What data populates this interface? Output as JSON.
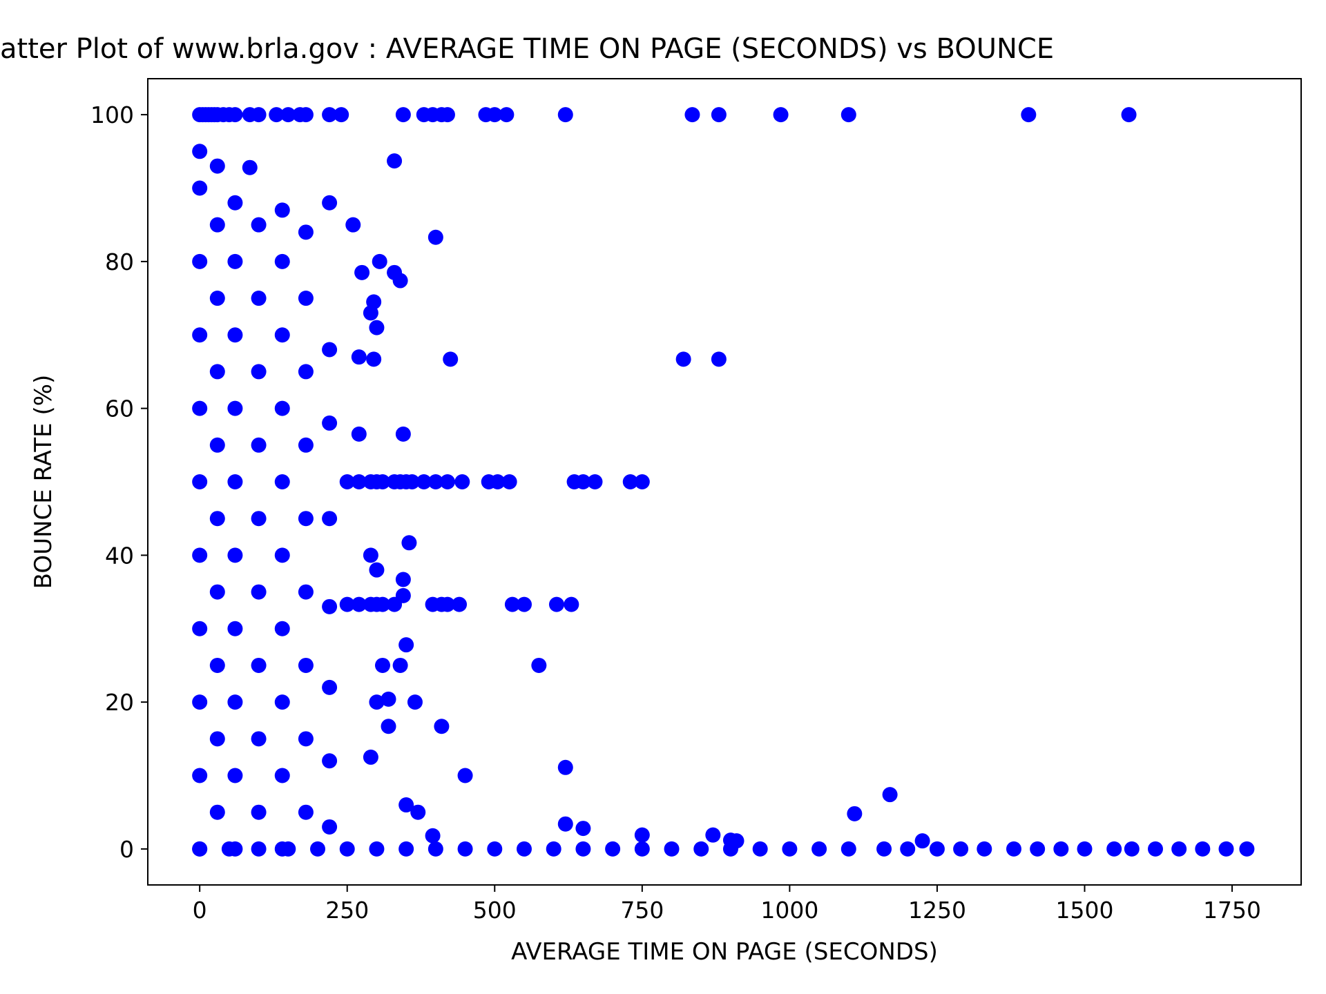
{
  "chart_data": {
    "type": "scatter",
    "title": "atter Plot of www.brla.gov : AVERAGE TIME ON PAGE (SECONDS) vs BOUNCE",
    "x_label": "AVERAGE TIME ON PAGE (SECONDS)",
    "y_label": "BOUNCE RATE (%)",
    "color": "#0000ff",
    "xlim": [
      -88,
      1867
    ],
    "ylim": [
      -4.9,
      104.9
    ],
    "xticks": [
      0,
      250,
      500,
      750,
      1000,
      1250,
      1500,
      1750
    ],
    "yticks": [
      0,
      20,
      40,
      60,
      80,
      100
    ],
    "grid": false,
    "x": [
      0,
      5,
      10,
      15,
      20,
      25,
      30,
      40,
      50,
      60,
      85,
      100,
      130,
      150,
      170,
      180,
      220,
      240,
      345,
      380,
      395,
      410,
      420,
      485,
      500,
      520,
      620,
      835,
      880,
      985,
      1100,
      1405,
      1575,
      250,
      270,
      290,
      300,
      310,
      330,
      340,
      350,
      360,
      380,
      400,
      420,
      445,
      490,
      505,
      525,
      635,
      650,
      670,
      730,
      750,
      250,
      270,
      290,
      300,
      310,
      330,
      395,
      410,
      420,
      440,
      530,
      550,
      605,
      630,
      330,
      85,
      400,
      260,
      305,
      330,
      340,
      275,
      295,
      290,
      300,
      425,
      820,
      880,
      270,
      295,
      345,
      270,
      355,
      290,
      300,
      345,
      345,
      350,
      340,
      310,
      575,
      365,
      320,
      300,
      410,
      320,
      450,
      620,
      290,
      350,
      370,
      1170,
      1110,
      620,
      650,
      395,
      750,
      870,
      900,
      910,
      1225,
      0,
      50,
      100,
      150,
      200,
      250,
      300,
      350,
      400,
      450,
      500,
      550,
      600,
      650,
      700,
      750,
      800,
      850,
      900,
      950,
      1000,
      1050,
      1100,
      1160,
      1200,
      1250,
      1290,
      1330,
      1380,
      1420,
      1460,
      1500,
      1550,
      1580,
      1620,
      1660,
      1700,
      1740,
      1775,
      0,
      0,
      0,
      0,
      0,
      0,
      0,
      0,
      0,
      0,
      0,
      30,
      30,
      30,
      30,
      30,
      30,
      30,
      30,
      30,
      30,
      60,
      60,
      60,
      60,
      60,
      60,
      60,
      60,
      60,
      60,
      100,
      100,
      100,
      100,
      100,
      100,
      100,
      100,
      100,
      140,
      140,
      140,
      140,
      140,
      140,
      140,
      140,
      140,
      140,
      180,
      180,
      180,
      180,
      180,
      180,
      180,
      180,
      180,
      220,
      220,
      220,
      220,
      220,
      220,
      220,
      220
    ],
    "values": [
      100,
      100,
      100,
      100,
      100,
      100,
      100,
      100,
      100,
      100,
      100,
      100,
      100,
      100,
      100,
      100,
      100,
      100,
      100,
      100,
      100,
      100,
      100,
      100,
      100,
      100,
      100,
      100,
      100,
      100,
      100,
      100,
      100,
      50,
      50,
      50,
      50,
      50,
      50,
      50,
      50,
      50,
      50,
      50,
      50,
      50,
      50,
      50,
      50,
      50,
      50,
      50,
      50,
      50,
      33.3,
      33.3,
      33.3,
      33.3,
      33.3,
      33.3,
      33.3,
      33.3,
      33.3,
      33.3,
      33.3,
      33.3,
      33.3,
      33.3,
      93.7,
      92.8,
      83.3,
      85,
      80,
      78.5,
      77.4,
      78.5,
      74.5,
      73,
      71,
      66.7,
      66.7,
      66.7,
      67,
      66.7,
      56.5,
      56.5,
      41.7,
      40,
      38,
      36.7,
      34.5,
      27.8,
      25,
      25,
      25,
      20,
      20.4,
      20,
      16.7,
      16.7,
      10,
      11.1,
      12.5,
      6,
      5,
      7.4,
      4.8,
      3.4,
      2.8,
      1.8,
      1.9,
      1.9,
      1.2,
      1.1,
      1.1,
      0,
      0,
      0,
      0,
      0,
      0,
      0,
      0,
      0,
      0,
      0,
      0,
      0,
      0,
      0,
      0,
      0,
      0,
      0,
      0,
      0,
      0,
      0,
      0,
      0,
      0,
      0,
      0,
      0,
      0,
      0,
      0,
      0,
      0,
      0,
      0,
      0,
      0,
      0,
      0,
      10,
      20,
      30,
      40,
      50,
      60,
      70,
      80,
      90,
      95,
      5,
      15,
      25,
      35,
      45,
      55,
      65,
      75,
      85,
      93,
      0,
      10,
      20,
      30,
      40,
      50,
      60,
      70,
      80,
      88,
      5,
      15,
      25,
      35,
      45,
      55,
      65,
      75,
      85,
      0,
      10,
      20,
      30,
      40,
      50,
      60,
      70,
      80,
      87,
      5,
      15,
      25,
      35,
      45,
      55,
      65,
      75,
      84,
      3,
      12,
      22,
      33,
      45,
      58,
      68,
      88
    ]
  }
}
